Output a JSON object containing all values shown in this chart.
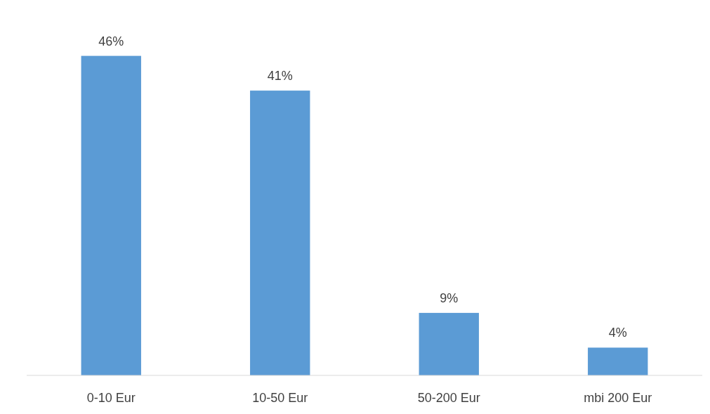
{
  "chart_data": {
    "type": "bar",
    "categories": [
      "0-10 Eur",
      "10-50 Eur",
      "50-200 Eur",
      "mbi 200  Eur"
    ],
    "values": [
      46,
      41,
      9,
      4
    ],
    "value_labels": [
      "46%",
      "41%",
      "9%",
      "4%"
    ],
    "color": "#5b9bd5"
  }
}
